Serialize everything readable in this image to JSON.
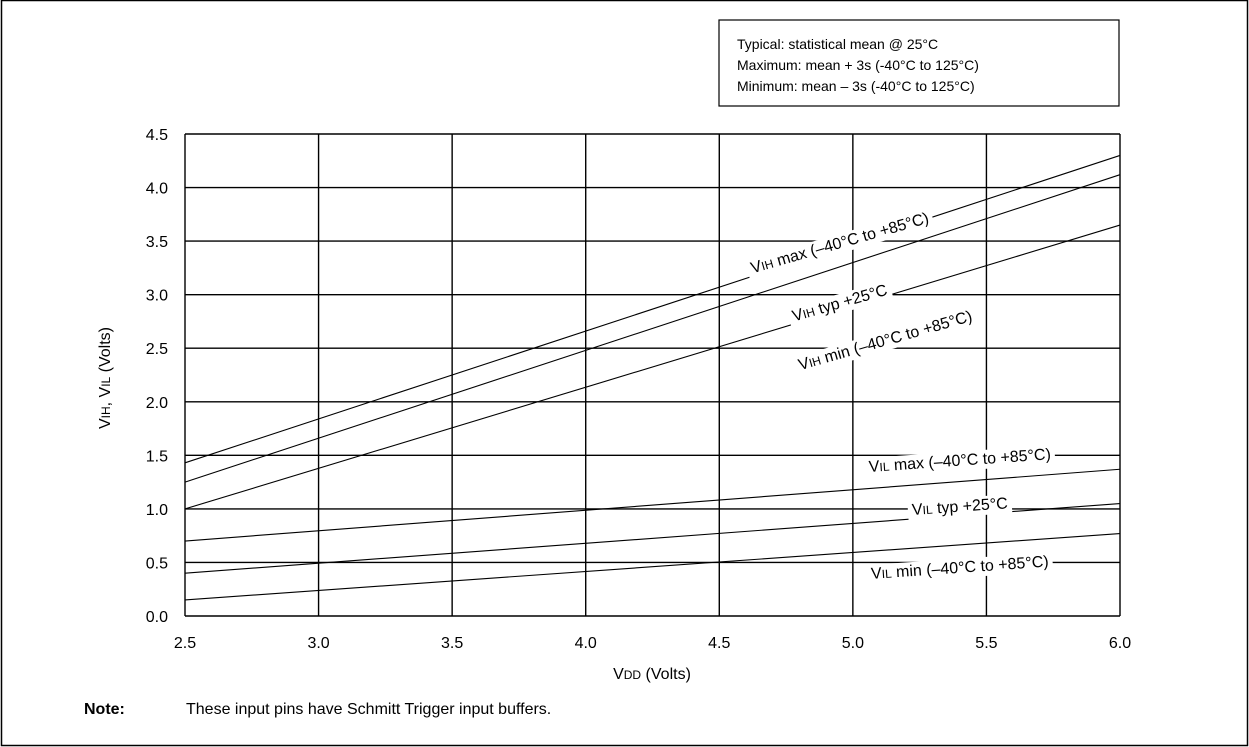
{
  "chart_data": {
    "type": "line",
    "xlabel": "VDD (Volts)",
    "ylabel": "VIH, VIL (Volts)",
    "xlim": [
      2.5,
      6.0
    ],
    "ylim": [
      0.0,
      4.5
    ],
    "xticks": [
      "2.5",
      "3.0",
      "3.5",
      "4.0",
      "4.5",
      "5.0",
      "5.5",
      "6.0"
    ],
    "yticks": [
      "0.0",
      "0.5",
      "1.0",
      "1.5",
      "2.0",
      "2.5",
      "3.0",
      "3.5",
      "4.0",
      "4.5"
    ],
    "grid": true,
    "legend": {
      "placement": "top-right",
      "lines": [
        "Typical:  statistical mean @ 25°C",
        "Maximum:  mean + 3s (-40°C to 125°C)",
        "Minimum:   mean – 3s (-40°C to 125°C)"
      ]
    },
    "series": [
      {
        "name": "VIH max (–40°C to +85°C)",
        "x": [
          2.5,
          6.0
        ],
        "y": [
          1.43,
          4.3
        ]
      },
      {
        "name": "VIH typ +25°C",
        "x": [
          2.5,
          6.0
        ],
        "y": [
          1.25,
          4.12
        ]
      },
      {
        "name": "VIH min (–40°C to +85°C)",
        "x": [
          2.5,
          6.0
        ],
        "y": [
          1.0,
          3.65
        ]
      },
      {
        "name": "VIL max (–40°C to +85°C)",
        "x": [
          2.5,
          6.0
        ],
        "y": [
          0.7,
          1.37
        ]
      },
      {
        "name": "VIL typ +25°C",
        "x": [
          2.5,
          6.0
        ],
        "y": [
          0.4,
          1.05
        ]
      },
      {
        "name": "VIL min (–40°C to +85°C)",
        "x": [
          2.5,
          6.0
        ],
        "y": [
          0.15,
          0.77
        ]
      }
    ],
    "labels": [
      {
        "main": "V",
        "sub": "IH",
        "rest": " max (–40°C to +85°C)",
        "x": 4.95,
        "y": 3.49,
        "angle": -16.0
      },
      {
        "main": "V",
        "sub": "IH",
        "rest": " typ +25°C",
        "x": 4.95,
        "y": 2.93,
        "angle": -16.0
      },
      {
        "main": "V",
        "sub": "IH",
        "rest": " min (–40°C to +85°C)",
        "x": 5.12,
        "y": 2.58,
        "angle": -16.0
      },
      {
        "main": "V",
        "sub": "IL",
        "rest": " max (–40°C to +85°C)",
        "x": 5.4,
        "y": 1.46,
        "angle": -4.0
      },
      {
        "main": "V",
        "sub": "IL",
        "rest": " typ +25°C",
        "x": 5.4,
        "y": 1.03,
        "angle": -4.0
      },
      {
        "main": "V",
        "sub": "IL",
        "rest": " min (–40°C to +85°C)",
        "x": 5.4,
        "y": 0.46,
        "angle": -4.0
      }
    ]
  },
  "note": {
    "label": "Note:",
    "text": "These input pins have Schmitt Trigger input buffers."
  }
}
